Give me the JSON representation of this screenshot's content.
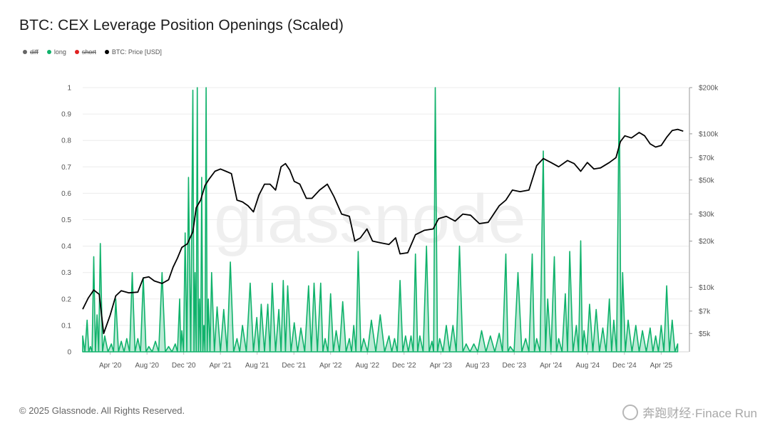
{
  "title": "BTC: CEX Leverage Position Openings (Scaled)",
  "legend": [
    {
      "label": "diff",
      "color": "#666666",
      "active": false
    },
    {
      "label": "long",
      "color": "#10b26b",
      "active": true
    },
    {
      "label": "short",
      "color": "#e02020",
      "active": false
    },
    {
      "label": "BTC: Price [USD]",
      "color": "#000000",
      "active": true
    }
  ],
  "footer": "© 2025 Glassnode. All Rights Reserved.",
  "watermark": "glassnode",
  "corner_watermark": "奔跑财经·Finace Run",
  "chart_data": {
    "type": "line",
    "x_tick_labels": [
      "Apr '20",
      "Aug '20",
      "Dec '20",
      "Apr '21",
      "Aug '21",
      "Dec '21",
      "Apr '22",
      "Aug '22",
      "Dec '22",
      "Apr '23",
      "Aug '23",
      "Dec '23",
      "Apr '24",
      "Aug '24",
      "Dec '24",
      "Apr '25"
    ],
    "x_range": [
      2020.0,
      2025.5
    ],
    "y_left": {
      "ticks": [
        "0",
        "0.1",
        "0.2",
        "0.3",
        "0.4",
        "0.5",
        "0.6",
        "0.7",
        "0.8",
        "0.9",
        "1"
      ],
      "range": [
        0,
        1
      ],
      "grid": true
    },
    "y_right": {
      "ticks": [
        "$5k",
        "$7k",
        "$10k",
        "$20k",
        "$30k",
        "$50k",
        "$70k",
        "$100k",
        "$200k"
      ],
      "tick_values": [
        5000,
        7000,
        10000,
        20000,
        30000,
        50000,
        70000,
        100000,
        200000
      ],
      "scale": "log",
      "range": [
        3800,
        200000
      ]
    },
    "series": [
      {
        "name": "long",
        "axis": "left",
        "color": "#10b26b",
        "style": "filled-line",
        "points": [
          [
            2020.0,
            0.06
          ],
          [
            2020.04,
            0.12
          ],
          [
            2020.07,
            0.02
          ],
          [
            2020.1,
            0.36
          ],
          [
            2020.13,
            0.14
          ],
          [
            2020.16,
            0.41
          ],
          [
            2020.2,
            0.06
          ],
          [
            2020.26,
            0.03
          ],
          [
            2020.3,
            0.2
          ],
          [
            2020.35,
            0.04
          ],
          [
            2020.4,
            0.05
          ],
          [
            2020.45,
            0.3
          ],
          [
            2020.5,
            0.05
          ],
          [
            2020.55,
            0.28
          ],
          [
            2020.6,
            0.02
          ],
          [
            2020.66,
            0.04
          ],
          [
            2020.72,
            0.3
          ],
          [
            2020.78,
            0.02
          ],
          [
            2020.84,
            0.03
          ],
          [
            2020.88,
            0.2
          ],
          [
            2020.9,
            0.08
          ],
          [
            2020.93,
            0.45
          ],
          [
            2020.96,
            0.66
          ],
          [
            2021.0,
            0.99
          ],
          [
            2021.02,
            0.3
          ],
          [
            2021.04,
            1.0
          ],
          [
            2021.06,
            0.2
          ],
          [
            2021.08,
            0.66
          ],
          [
            2021.1,
            0.1
          ],
          [
            2021.12,
            1.0
          ],
          [
            2021.14,
            0.2
          ],
          [
            2021.17,
            0.3
          ],
          [
            2021.22,
            0.17
          ],
          [
            2021.28,
            0.16
          ],
          [
            2021.34,
            0.34
          ],
          [
            2021.4,
            0.05
          ],
          [
            2021.45,
            0.1
          ],
          [
            2021.52,
            0.26
          ],
          [
            2021.58,
            0.13
          ],
          [
            2021.62,
            0.18
          ],
          [
            2021.68,
            0.18
          ],
          [
            2021.72,
            0.26
          ],
          [
            2021.78,
            0.16
          ],
          [
            2021.82,
            0.27
          ],
          [
            2021.86,
            0.25
          ],
          [
            2021.92,
            0.11
          ],
          [
            2021.98,
            0.09
          ],
          [
            2022.05,
            0.25
          ],
          [
            2022.1,
            0.26
          ],
          [
            2022.16,
            0.26
          ],
          [
            2022.2,
            0.05
          ],
          [
            2022.25,
            0.22
          ],
          [
            2022.3,
            0.08
          ],
          [
            2022.36,
            0.19
          ],
          [
            2022.42,
            0.05
          ],
          [
            2022.46,
            0.1
          ],
          [
            2022.5,
            0.38
          ],
          [
            2022.55,
            0.05
          ],
          [
            2022.62,
            0.12
          ],
          [
            2022.7,
            0.14
          ],
          [
            2022.78,
            0.06
          ],
          [
            2022.83,
            0.05
          ],
          [
            2022.88,
            0.27
          ],
          [
            2022.93,
            0.06
          ],
          [
            2022.98,
            0.06
          ],
          [
            2023.02,
            0.37
          ],
          [
            2023.06,
            0.06
          ],
          [
            2023.12,
            0.4
          ],
          [
            2023.17,
            0.04
          ],
          [
            2023.2,
            1.0
          ],
          [
            2023.24,
            0.05
          ],
          [
            2023.3,
            0.1
          ],
          [
            2023.36,
            0.1
          ],
          [
            2023.42,
            0.4
          ],
          [
            2023.48,
            0.03
          ],
          [
            2023.55,
            0.03
          ],
          [
            2023.62,
            0.08
          ],
          [
            2023.7,
            0.06
          ],
          [
            2023.78,
            0.07
          ],
          [
            2023.84,
            0.37
          ],
          [
            2023.88,
            0.02
          ],
          [
            2023.95,
            0.3
          ],
          [
            2024.02,
            0.05
          ],
          [
            2024.08,
            0.37
          ],
          [
            2024.12,
            0.05
          ],
          [
            2024.18,
            0.76
          ],
          [
            2024.22,
            0.2
          ],
          [
            2024.28,
            0.36
          ],
          [
            2024.32,
            0.05
          ],
          [
            2024.38,
            0.22
          ],
          [
            2024.42,
            0.38
          ],
          [
            2024.48,
            0.1
          ],
          [
            2024.52,
            0.42
          ],
          [
            2024.55,
            0.08
          ],
          [
            2024.6,
            0.18
          ],
          [
            2024.66,
            0.16
          ],
          [
            2024.72,
            0.09
          ],
          [
            2024.78,
            0.2
          ],
          [
            2024.82,
            0.12
          ],
          [
            2024.87,
            1.0
          ],
          [
            2024.9,
            0.3
          ],
          [
            2024.95,
            0.12
          ],
          [
            2025.02,
            0.1
          ],
          [
            2025.08,
            0.08
          ],
          [
            2025.15,
            0.09
          ],
          [
            2025.2,
            0.06
          ],
          [
            2025.25,
            0.1
          ],
          [
            2025.3,
            0.25
          ],
          [
            2025.35,
            0.12
          ],
          [
            2025.4,
            0.03
          ]
        ]
      },
      {
        "name": "BTC: Price [USD]",
        "axis": "right",
        "color": "#000000",
        "style": "line",
        "points": [
          [
            2020.0,
            7200
          ],
          [
            2020.05,
            8500
          ],
          [
            2020.1,
            9600
          ],
          [
            2020.15,
            9000
          ],
          [
            2020.19,
            5000
          ],
          [
            2020.25,
            6600
          ],
          [
            2020.3,
            8800
          ],
          [
            2020.35,
            9500
          ],
          [
            2020.42,
            9200
          ],
          [
            2020.5,
            9300
          ],
          [
            2020.55,
            11500
          ],
          [
            2020.6,
            11700
          ],
          [
            2020.65,
            11000
          ],
          [
            2020.72,
            10600
          ],
          [
            2020.78,
            11200
          ],
          [
            2020.82,
            13500
          ],
          [
            2020.86,
            15500
          ],
          [
            2020.9,
            18200
          ],
          [
            2020.95,
            19200
          ],
          [
            2021.0,
            23000
          ],
          [
            2021.03,
            33000
          ],
          [
            2021.07,
            37000
          ],
          [
            2021.11,
            46000
          ],
          [
            2021.15,
            51000
          ],
          [
            2021.2,
            57000
          ],
          [
            2021.25,
            59000
          ],
          [
            2021.3,
            57000
          ],
          [
            2021.35,
            55000
          ],
          [
            2021.4,
            37000
          ],
          [
            2021.45,
            36000
          ],
          [
            2021.5,
            34000
          ],
          [
            2021.55,
            31000
          ],
          [
            2021.6,
            40000
          ],
          [
            2021.65,
            47000
          ],
          [
            2021.7,
            47000
          ],
          [
            2021.75,
            43000
          ],
          [
            2021.8,
            61000
          ],
          [
            2021.84,
            64000
          ],
          [
            2021.88,
            58000
          ],
          [
            2021.92,
            49000
          ],
          [
            2021.97,
            47000
          ],
          [
            2022.03,
            38000
          ],
          [
            2022.08,
            38000
          ],
          [
            2022.15,
            43000
          ],
          [
            2022.22,
            47000
          ],
          [
            2022.28,
            39000
          ],
          [
            2022.35,
            30000
          ],
          [
            2022.42,
            29000
          ],
          [
            2022.47,
            20000
          ],
          [
            2022.52,
            21000
          ],
          [
            2022.58,
            24000
          ],
          [
            2022.63,
            20000
          ],
          [
            2022.7,
            19500
          ],
          [
            2022.78,
            19000
          ],
          [
            2022.84,
            21000
          ],
          [
            2022.88,
            16500
          ],
          [
            2022.95,
            16800
          ],
          [
            2023.02,
            22000
          ],
          [
            2023.1,
            23500
          ],
          [
            2023.18,
            24000
          ],
          [
            2023.23,
            28000
          ],
          [
            2023.3,
            29000
          ],
          [
            2023.38,
            27000
          ],
          [
            2023.45,
            30000
          ],
          [
            2023.52,
            29500
          ],
          [
            2023.6,
            26000
          ],
          [
            2023.68,
            26500
          ],
          [
            2023.78,
            34000
          ],
          [
            2023.84,
            37000
          ],
          [
            2023.9,
            43000
          ],
          [
            2023.97,
            42000
          ],
          [
            2024.05,
            43000
          ],
          [
            2024.12,
            62000
          ],
          [
            2024.18,
            69000
          ],
          [
            2024.25,
            65000
          ],
          [
            2024.32,
            61000
          ],
          [
            2024.4,
            67000
          ],
          [
            2024.46,
            64000
          ],
          [
            2024.52,
            57000
          ],
          [
            2024.58,
            65000
          ],
          [
            2024.64,
            59000
          ],
          [
            2024.7,
            60000
          ],
          [
            2024.78,
            65000
          ],
          [
            2024.84,
            70000
          ],
          [
            2024.88,
            89000
          ],
          [
            2024.92,
            97000
          ],
          [
            2024.98,
            94000
          ],
          [
            2025.05,
            102000
          ],
          [
            2025.1,
            97000
          ],
          [
            2025.15,
            86000
          ],
          [
            2025.2,
            82000
          ],
          [
            2025.25,
            84000
          ],
          [
            2025.3,
            95000
          ],
          [
            2025.35,
            105000
          ],
          [
            2025.4,
            107000
          ],
          [
            2025.45,
            104000
          ]
        ]
      }
    ]
  }
}
